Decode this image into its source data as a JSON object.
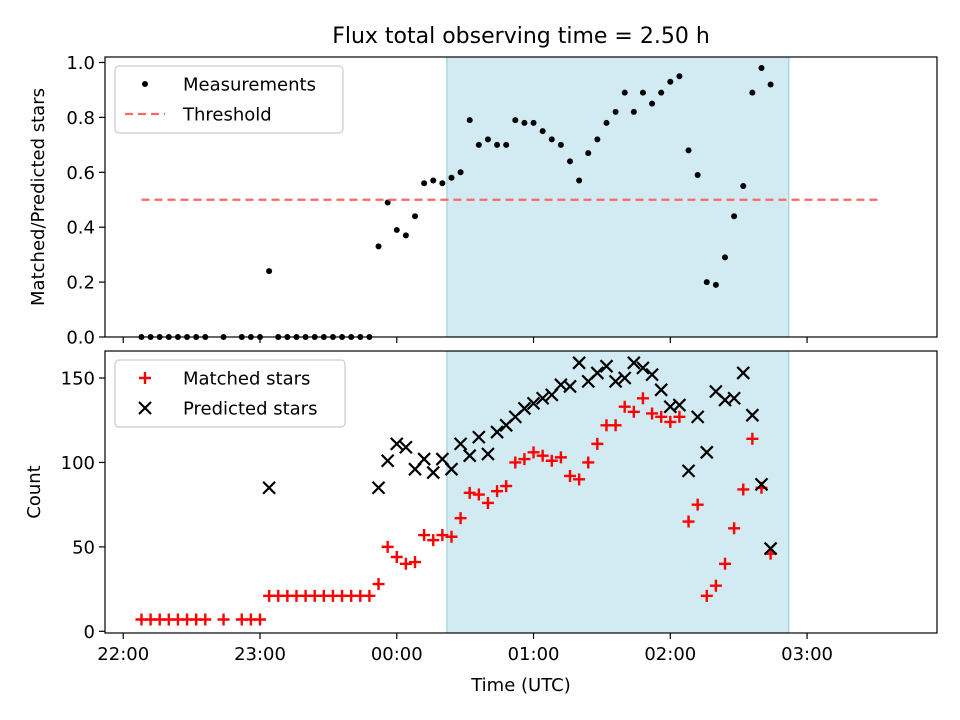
{
  "chart_data": {
    "title": "Flux total observing time = 2.50 h",
    "xlabel": "Time (UTC)",
    "xlim": [
      "21:52",
      "03:57"
    ],
    "xticks": [
      "22:00",
      "23:00",
      "00:00",
      "01:00",
      "02:00",
      "03:00"
    ],
    "shaded_interval": [
      "00:22",
      "02:52"
    ],
    "colors": {
      "shade": "#add8e6",
      "threshold": "#ff6666",
      "measurements": "#000000",
      "matched": "#ff0000",
      "predicted": "#000000"
    },
    "panels": [
      {
        "type": "scatter",
        "ylabel": "Matched/Predicted stars",
        "ylim": [
          0,
          1.02
        ],
        "yticks": [
          "0.0",
          "0.2",
          "0.4",
          "0.6",
          "0.8",
          "1.0"
        ],
        "legend": [
          "Measurements",
          "Threshold"
        ],
        "legend_loc": "upper left",
        "threshold": {
          "name": "Threshold",
          "value": 0.5,
          "x_start": "22:08",
          "x_end": "03:32"
        },
        "series": [
          {
            "name": "Measurements",
            "marker": "dot",
            "points": [
              [
                "22:08",
                0.0
              ],
              [
                "22:12",
                0.0
              ],
              [
                "22:16",
                0.0
              ],
              [
                "22:20",
                0.0
              ],
              [
                "22:24",
                0.0
              ],
              [
                "22:28",
                0.0
              ],
              [
                "22:32",
                0.0
              ],
              [
                "22:36",
                0.0
              ],
              [
                "22:44",
                0.0
              ],
              [
                "22:52",
                0.0
              ],
              [
                "22:56",
                0.0
              ],
              [
                "23:00",
                0.0
              ],
              [
                "23:04",
                0.24
              ],
              [
                "23:08",
                0.0
              ],
              [
                "23:12",
                0.0
              ],
              [
                "23:16",
                0.0
              ],
              [
                "23:20",
                0.0
              ],
              [
                "23:24",
                0.0
              ],
              [
                "23:28",
                0.0
              ],
              [
                "23:32",
                0.0
              ],
              [
                "23:36",
                0.0
              ],
              [
                "23:40",
                0.0
              ],
              [
                "23:44",
                0.0
              ],
              [
                "23:48",
                0.0
              ],
              [
                "23:52",
                0.33
              ],
              [
                "23:56",
                0.49
              ],
              [
                "00:00",
                0.39
              ],
              [
                "00:04",
                0.37
              ],
              [
                "00:08",
                0.44
              ],
              [
                "00:12",
                0.56
              ],
              [
                "00:16",
                0.57
              ],
              [
                "00:20",
                0.56
              ],
              [
                "00:24",
                0.58
              ],
              [
                "00:28",
                0.6
              ],
              [
                "00:32",
                0.79
              ],
              [
                "00:36",
                0.7
              ],
              [
                "00:40",
                0.72
              ],
              [
                "00:44",
                0.7
              ],
              [
                "00:48",
                0.7
              ],
              [
                "00:52",
                0.79
              ],
              [
                "00:56",
                0.78
              ],
              [
                "01:00",
                0.78
              ],
              [
                "01:04",
                0.75
              ],
              [
                "01:08",
                0.72
              ],
              [
                "01:12",
                0.7
              ],
              [
                "01:16",
                0.64
              ],
              [
                "01:20",
                0.57
              ],
              [
                "01:24",
                0.67
              ],
              [
                "01:28",
                0.72
              ],
              [
                "01:32",
                0.78
              ],
              [
                "01:36",
                0.82
              ],
              [
                "01:40",
                0.89
              ],
              [
                "01:44",
                0.82
              ],
              [
                "01:48",
                0.89
              ],
              [
                "01:52",
                0.85
              ],
              [
                "01:56",
                0.89
              ],
              [
                "02:00",
                0.93
              ],
              [
                "02:04",
                0.95
              ],
              [
                "02:08",
                0.68
              ],
              [
                "02:12",
                0.59
              ],
              [
                "02:16",
                0.2
              ],
              [
                "02:20",
                0.19
              ],
              [
                "02:24",
                0.29
              ],
              [
                "02:28",
                0.44
              ],
              [
                "02:32",
                0.55
              ],
              [
                "02:36",
                0.89
              ],
              [
                "02:40",
                0.98
              ],
              [
                "02:44",
                0.92
              ]
            ]
          }
        ]
      },
      {
        "type": "scatter",
        "ylabel": "Count",
        "ylim": [
          -1,
          166
        ],
        "yticks": [
          "0",
          "50",
          "100",
          "150"
        ],
        "legend": [
          "Matched stars",
          "Predicted stars"
        ],
        "legend_loc": "upper left",
        "series": [
          {
            "name": "Matched stars",
            "marker": "plus",
            "points": [
              [
                "22:08",
                7
              ],
              [
                "22:12",
                7
              ],
              [
                "22:16",
                7
              ],
              [
                "22:20",
                7
              ],
              [
                "22:24",
                7
              ],
              [
                "22:28",
                7
              ],
              [
                "22:32",
                7
              ],
              [
                "22:36",
                7
              ],
              [
                "22:44",
                7
              ],
              [
                "22:52",
                7
              ],
              [
                "22:56",
                7
              ],
              [
                "23:00",
                7
              ],
              [
                "23:04",
                21
              ],
              [
                "23:08",
                21
              ],
              [
                "23:12",
                21
              ],
              [
                "23:16",
                21
              ],
              [
                "23:20",
                21
              ],
              [
                "23:24",
                21
              ],
              [
                "23:28",
                21
              ],
              [
                "23:32",
                21
              ],
              [
                "23:36",
                21
              ],
              [
                "23:40",
                21
              ],
              [
                "23:44",
                21
              ],
              [
                "23:48",
                21
              ],
              [
                "23:52",
                28
              ],
              [
                "23:56",
                50
              ],
              [
                "00:00",
                44
              ],
              [
                "00:04",
                40
              ],
              [
                "00:08",
                41
              ],
              [
                "00:12",
                57
              ],
              [
                "00:16",
                54
              ],
              [
                "00:20",
                57
              ],
              [
                "00:24",
                56
              ],
              [
                "00:28",
                67
              ],
              [
                "00:32",
                82
              ],
              [
                "00:36",
                81
              ],
              [
                "00:40",
                76
              ],
              [
                "00:44",
                83
              ],
              [
                "00:48",
                86
              ],
              [
                "00:52",
                100
              ],
              [
                "00:56",
                102
              ],
              [
                "01:00",
                106
              ],
              [
                "01:04",
                104
              ],
              [
                "01:08",
                101
              ],
              [
                "01:12",
                103
              ],
              [
                "01:16",
                92
              ],
              [
                "01:20",
                90
              ],
              [
                "01:24",
                100
              ],
              [
                "01:28",
                111
              ],
              [
                "01:32",
                122
              ],
              [
                "01:36",
                122
              ],
              [
                "01:40",
                133
              ],
              [
                "01:44",
                130
              ],
              [
                "01:48",
                138
              ],
              [
                "01:52",
                129
              ],
              [
                "01:56",
                127
              ],
              [
                "02:00",
                124
              ],
              [
                "02:04",
                127
              ],
              [
                "02:08",
                65
              ],
              [
                "02:12",
                75
              ],
              [
                "02:16",
                21
              ],
              [
                "02:20",
                27
              ],
              [
                "02:24",
                40
              ],
              [
                "02:28",
                61
              ],
              [
                "02:32",
                84
              ],
              [
                "02:36",
                114
              ],
              [
                "02:40",
                85
              ],
              [
                "02:44",
                46
              ]
            ]
          },
          {
            "name": "Predicted stars",
            "marker": "x",
            "points": [
              [
                "23:04",
                85
              ],
              [
                "23:52",
                85
              ],
              [
                "23:56",
                101
              ],
              [
                "00:00",
                111
              ],
              [
                "00:04",
                109
              ],
              [
                "00:08",
                96
              ],
              [
                "00:12",
                102
              ],
              [
                "00:16",
                94
              ],
              [
                "00:20",
                102
              ],
              [
                "00:24",
                96
              ],
              [
                "00:28",
                111
              ],
              [
                "00:32",
                104
              ],
              [
                "00:36",
                115
              ],
              [
                "00:40",
                105
              ],
              [
                "00:44",
                118
              ],
              [
                "00:48",
                122
              ],
              [
                "00:52",
                127
              ],
              [
                "00:56",
                132
              ],
              [
                "01:00",
                135
              ],
              [
                "01:04",
                138
              ],
              [
                "01:08",
                140
              ],
              [
                "01:12",
                146
              ],
              [
                "01:16",
                145
              ],
              [
                "01:20",
                159
              ],
              [
                "01:24",
                148
              ],
              [
                "01:28",
                153
              ],
              [
                "01:32",
                157
              ],
              [
                "01:36",
                148
              ],
              [
                "01:40",
                150
              ],
              [
                "01:44",
                159
              ],
              [
                "01:48",
                156
              ],
              [
                "01:52",
                152
              ],
              [
                "01:56",
                143
              ],
              [
                "02:00",
                133
              ],
              [
                "02:04",
                134
              ],
              [
                "02:08",
                95
              ],
              [
                "02:12",
                127
              ],
              [
                "02:16",
                106
              ],
              [
                "02:20",
                142
              ],
              [
                "02:24",
                137
              ],
              [
                "02:28",
                138
              ],
              [
                "02:32",
                153
              ],
              [
                "02:36",
                128
              ],
              [
                "02:40",
                87
              ],
              [
                "02:44",
                49
              ]
            ]
          }
        ]
      }
    ]
  }
}
